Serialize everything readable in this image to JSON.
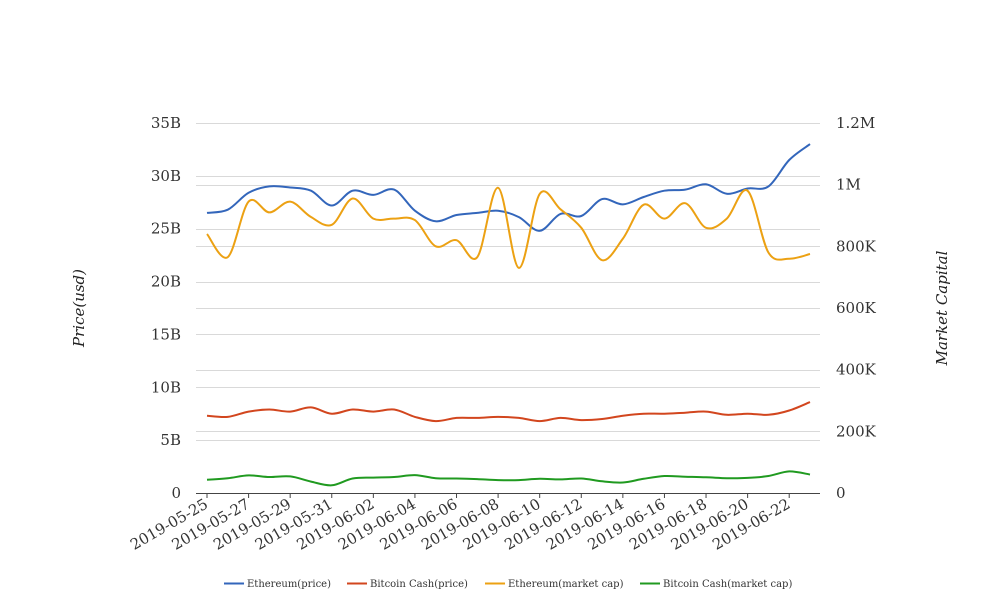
{
  "chart_data": {
    "type": "line",
    "title": "",
    "ylabel_left": "Price(usd)",
    "ylabel_right": "Market Capital",
    "ylim_left": [
      0,
      35000000000
    ],
    "ylim_right": [
      0,
      1200000
    ],
    "left_ticks": [
      {
        "value": 0,
        "label": "0"
      },
      {
        "value": 5000000000,
        "label": "5B"
      },
      {
        "value": 10000000000,
        "label": "10B"
      },
      {
        "value": 15000000000,
        "label": "15B"
      },
      {
        "value": 20000000000,
        "label": "20B"
      },
      {
        "value": 25000000000,
        "label": "25B"
      },
      {
        "value": 30000000000,
        "label": "30B"
      },
      {
        "value": 35000000000,
        "label": "35B"
      }
    ],
    "right_ticks": [
      {
        "value": 0,
        "label": "0"
      },
      {
        "value": 200000,
        "label": "200K"
      },
      {
        "value": 400000,
        "label": "400K"
      },
      {
        "value": 600000,
        "label": "600K"
      },
      {
        "value": 800000,
        "label": "800K"
      },
      {
        "value": 1000000,
        "label": "1M"
      },
      {
        "value": 1200000,
        "label": "1.2M"
      }
    ],
    "x_tick_labels": [
      "2019-05-25",
      "2019-05-27",
      "2019-05-29",
      "2019-05-31",
      "2019-06-02",
      "2019-06-04",
      "2019-06-06",
      "2019-06-08",
      "2019-06-10",
      "2019-06-12",
      "2019-06-14",
      "2019-06-16",
      "2019-06-18",
      "2019-06-20",
      "2019-06-22"
    ],
    "x": [
      "2019-05-25",
      "2019-05-26",
      "2019-05-27",
      "2019-05-28",
      "2019-05-29",
      "2019-05-30",
      "2019-05-31",
      "2019-06-01",
      "2019-06-02",
      "2019-06-03",
      "2019-06-04",
      "2019-06-05",
      "2019-06-06",
      "2019-06-07",
      "2019-06-08",
      "2019-06-09",
      "2019-06-10",
      "2019-06-11",
      "2019-06-12",
      "2019-06-13",
      "2019-06-14",
      "2019-06-15",
      "2019-06-16",
      "2019-06-17",
      "2019-06-18",
      "2019-06-19",
      "2019-06-20",
      "2019-06-21",
      "2019-06-22",
      "2019-06-23"
    ],
    "grid": true,
    "legend_position": "bottom",
    "series": [
      {
        "name": "Ethereum(price)",
        "axis": "left",
        "color": "#3366bb",
        "values": [
          26.5,
          26.8,
          28.4,
          29.0,
          28.9,
          28.6,
          27.2,
          28.6,
          28.2,
          28.7,
          26.7,
          25.7,
          26.3,
          26.5,
          26.7,
          26.1,
          24.8,
          26.4,
          26.2,
          27.8,
          27.3,
          28.0,
          28.6,
          28.7,
          29.2,
          28.3,
          28.8,
          29.0,
          31.5,
          33.0
        ]
      },
      {
        "name": "Bitcoin Cash(price)",
        "axis": "left",
        "color": "#d2461e",
        "values": [
          7.3,
          7.2,
          7.7,
          7.9,
          7.7,
          8.1,
          7.5,
          7.9,
          7.7,
          7.9,
          7.2,
          6.8,
          7.1,
          7.1,
          7.2,
          7.1,
          6.8,
          7.1,
          6.9,
          7.0,
          7.3,
          7.5,
          7.5,
          7.6,
          7.7,
          7.4,
          7.5,
          7.4,
          7.8,
          8.6
        ]
      },
      {
        "name": "Ethereum(market cap)",
        "axis": "right",
        "color": "#eca113",
        "values": [
          840000,
          765000,
          945000,
          910000,
          945000,
          895000,
          870000,
          955000,
          890000,
          890000,
          885000,
          800000,
          820000,
          765000,
          990000,
          730000,
          970000,
          920000,
          860000,
          755000,
          825000,
          935000,
          890000,
          940000,
          860000,
          890000,
          980000,
          780000,
          760000,
          775000
        ]
      },
      {
        "name": "Bitcoin Cash(market cap)",
        "axis": "right",
        "color": "#209a20",
        "values": [
          43000,
          48000,
          57000,
          52000,
          54000,
          37000,
          25000,
          47000,
          50000,
          52000,
          58000,
          48000,
          47000,
          45000,
          42000,
          42000,
          46000,
          44000,
          47000,
          38000,
          34000,
          46000,
          55000,
          53000,
          51000,
          48000,
          49000,
          55000,
          70000,
          60000
        ]
      }
    ],
    "price_unit_note": "",
    "price_scale": 1000000000
  }
}
